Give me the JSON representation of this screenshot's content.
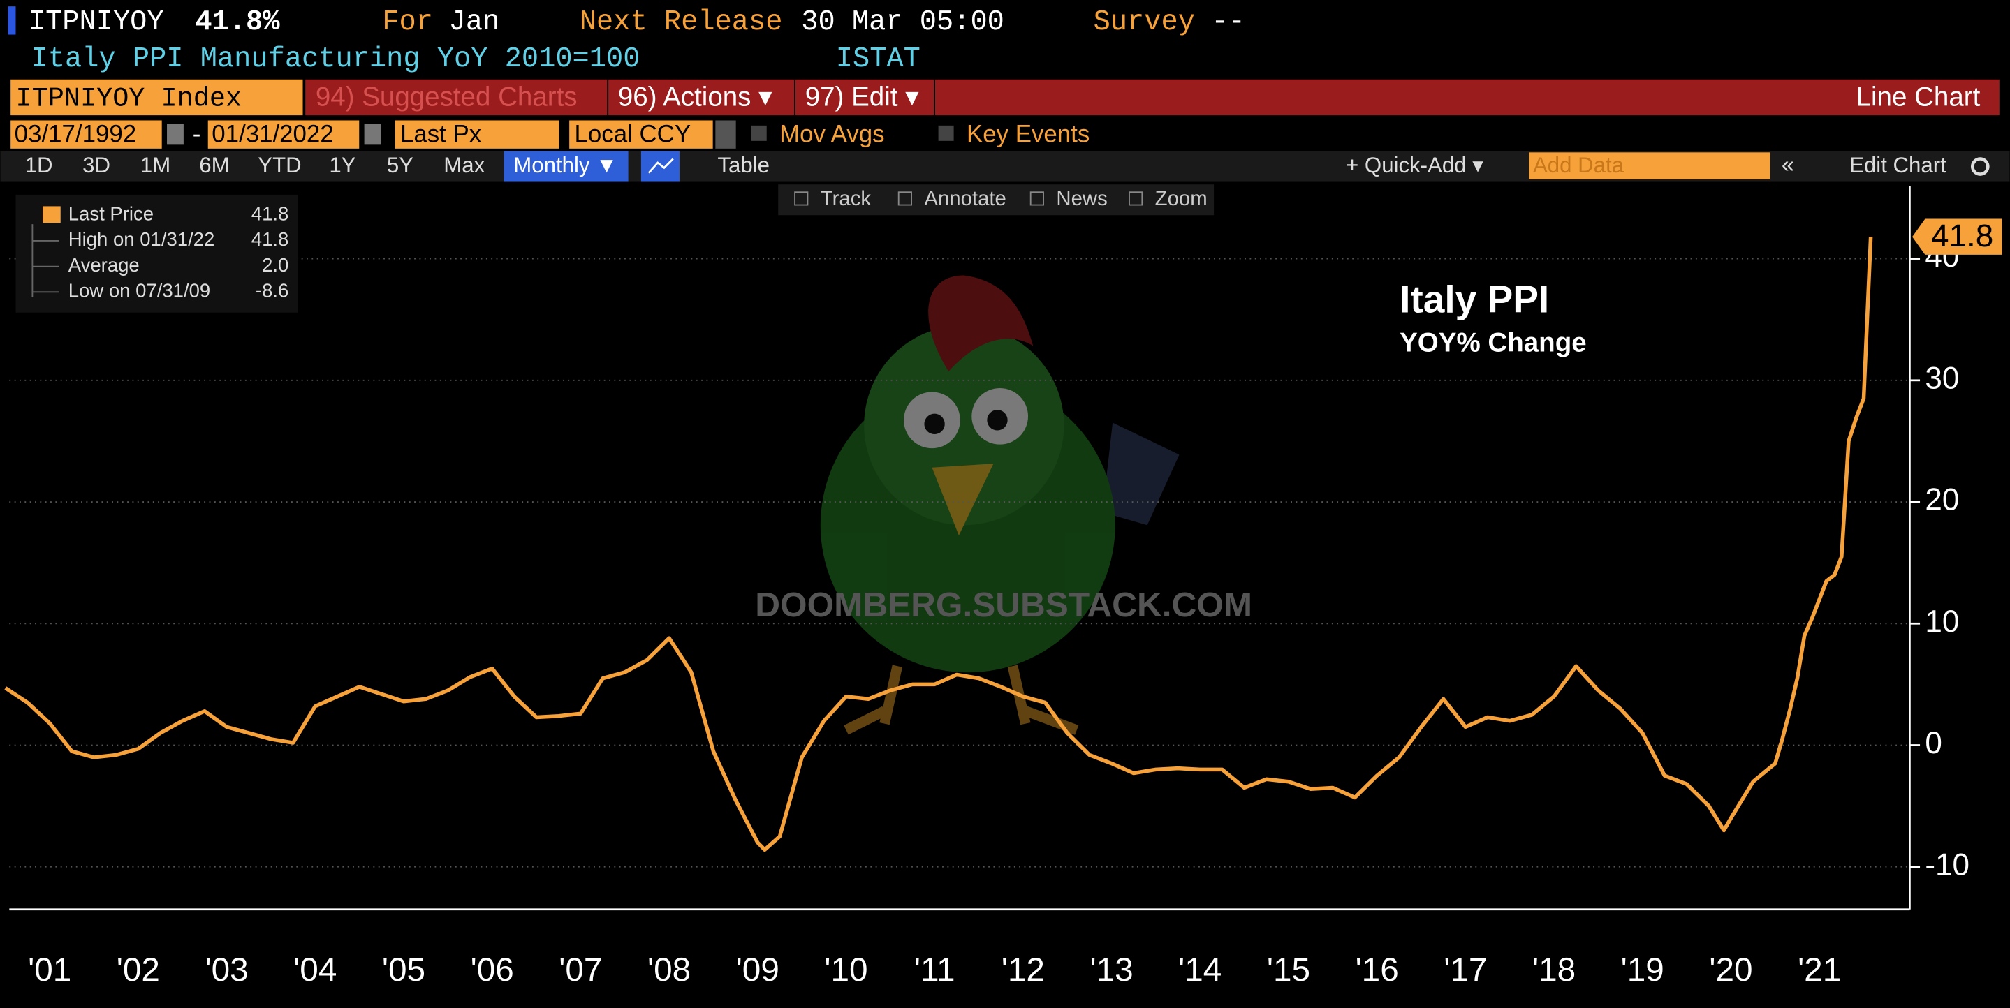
{
  "header": {
    "ticker": "ITPNIYOY",
    "last": "41.8%",
    "for_label": "For",
    "for_value": "Jan",
    "next_label": "Next Release",
    "next_value": "30 Mar 05:00",
    "survey_label": "Survey",
    "survey_value": "--",
    "description": "Italy PPI Manufacturing YoY 2010=100",
    "source": "ISTAT"
  },
  "toolbar": {
    "security": "ITPNIYOY Index",
    "menu": [
      "94) Suggested Charts",
      "96) Actions ▾",
      "97) Edit ▾"
    ],
    "chart_type": "Line Chart"
  },
  "settings": {
    "start": "03/17/1992",
    "dash": "-",
    "end": "01/31/2022",
    "field": "Last Px",
    "currency": "Local CCY",
    "options": [
      "Mov Avgs",
      "Key Events"
    ]
  },
  "ranges": [
    "1D",
    "3D",
    "1M",
    "6M",
    "YTD",
    "1Y",
    "5Y",
    "Max"
  ],
  "frequency": "Monthly ▼",
  "table": "Table",
  "quick_add": "+ Quick-Add ▾",
  "add_data": "Add Data",
  "edit_chart": "Edit Chart",
  "tools": [
    "Track",
    "Annotate",
    "News",
    "Zoom"
  ],
  "watermark": "DOOMBERG.SUBSTACK.COM",
  "chart_data": {
    "type": "line",
    "title": "Italy PPI",
    "subtitle": "YOY% Change",
    "x": [
      2001,
      2001.25,
      2001.5,
      2001.75,
      2002,
      2002.25,
      2002.5,
      2002.75,
      2003,
      2003.25,
      2003.5,
      2003.75,
      2004,
      2004.25,
      2004.5,
      2004.75,
      2005,
      2005.25,
      2005.5,
      2005.75,
      2006,
      2006.25,
      2006.5,
      2006.75,
      2007,
      2007.25,
      2007.5,
      2007.75,
      2008,
      2008.25,
      2008.5,
      2008.75,
      2009,
      2009.25,
      2009.5,
      2009.58,
      2009.75,
      2010,
      2010.25,
      2010.5,
      2010.75,
      2011,
      2011.25,
      2011.5,
      2011.75,
      2012,
      2012.25,
      2012.5,
      2012.75,
      2013,
      2013.25,
      2013.5,
      2013.75,
      2014,
      2014.25,
      2014.5,
      2014.75,
      2015,
      2015.25,
      2015.5,
      2015.75,
      2016,
      2016.25,
      2016.5,
      2016.75,
      2017,
      2017.25,
      2017.5,
      2017.75,
      2018,
      2018.25,
      2018.5,
      2018.75,
      2019,
      2019.25,
      2019.5,
      2019.75,
      2020,
      2020.25,
      2020.42,
      2020.5,
      2020.75,
      2021,
      2021.08,
      2021.17,
      2021.25,
      2021.33,
      2021.42,
      2021.5,
      2021.58,
      2021.67,
      2021.75,
      2021.83,
      2021.92,
      2022,
      2022.08
    ],
    "series": [
      {
        "name": "Last Price",
        "color": "#f7a13a",
        "values": [
          4.7,
          3.5,
          1.8,
          -0.5,
          -1.0,
          -0.8,
          -0.3,
          1.0,
          2.0,
          2.8,
          1.5,
          1.0,
          0.5,
          0.2,
          3.2,
          4.0,
          4.8,
          4.2,
          3.6,
          3.8,
          4.5,
          5.6,
          6.3,
          4.0,
          2.3,
          2.4,
          2.6,
          5.5,
          6.0,
          7.0,
          8.8,
          6.0,
          -0.5,
          -4.5,
          -8.0,
          -8.6,
          -7.5,
          -1.0,
          2.0,
          4.0,
          3.8,
          4.5,
          5.0,
          5.0,
          5.8,
          5.5,
          4.8,
          4.0,
          3.5,
          1.0,
          -0.8,
          -1.5,
          -2.3,
          -2.0,
          -1.9,
          -2.0,
          -2.0,
          -3.5,
          -2.8,
          -3.0,
          -3.6,
          -3.5,
          -4.3,
          -2.5,
          -1.0,
          1.5,
          3.8,
          1.5,
          2.3,
          2.0,
          2.5,
          4.0,
          6.5,
          4.5,
          3.0,
          1.0,
          -2.5,
          -3.2,
          -5.0,
          -7.0,
          -6.0,
          -3.0,
          -1.5,
          0.5,
          3.0,
          5.5,
          9.0,
          10.5,
          12.0,
          13.5,
          14.0,
          15.5,
          25.0,
          27.0,
          28.5,
          41.8
        ]
      }
    ],
    "stats": [
      {
        "label": "High on 01/31/22",
        "value": "41.8"
      },
      {
        "label": "Average",
        "value": "2.0"
      },
      {
        "label": "Low on 07/31/09",
        "value": "-8.6"
      }
    ],
    "xlim": [
      2001,
      2022.52
    ],
    "xticks": [
      {
        "value": 2001.5,
        "label": "'01"
      },
      {
        "value": 2002.5,
        "label": "'02"
      },
      {
        "value": 2003.5,
        "label": "'03"
      },
      {
        "value": 2004.5,
        "label": "'04"
      },
      {
        "value": 2005.5,
        "label": "'05"
      },
      {
        "value": 2006.5,
        "label": "'06"
      },
      {
        "value": 2007.5,
        "label": "'07"
      },
      {
        "value": 2008.5,
        "label": "'08"
      },
      {
        "value": 2009.5,
        "label": "'09"
      },
      {
        "value": 2010.5,
        "label": "'10"
      },
      {
        "value": 2011.5,
        "label": "'11"
      },
      {
        "value": 2012.5,
        "label": "'12"
      },
      {
        "value": 2013.5,
        "label": "'13"
      },
      {
        "value": 2014.5,
        "label": "'14"
      },
      {
        "value": 2015.5,
        "label": "'15"
      },
      {
        "value": 2016.5,
        "label": "'16"
      },
      {
        "value": 2017.5,
        "label": "'17"
      },
      {
        "value": 2018.5,
        "label": "'18"
      },
      {
        "value": 2019.5,
        "label": "'19"
      },
      {
        "value": 2020.5,
        "label": "'20"
      },
      {
        "value": 2021.5,
        "label": "'21"
      }
    ],
    "ylim": [
      -13.5,
      46
    ],
    "yticks": [
      -10,
      0,
      10,
      20,
      30,
      40
    ],
    "grid": true
  }
}
